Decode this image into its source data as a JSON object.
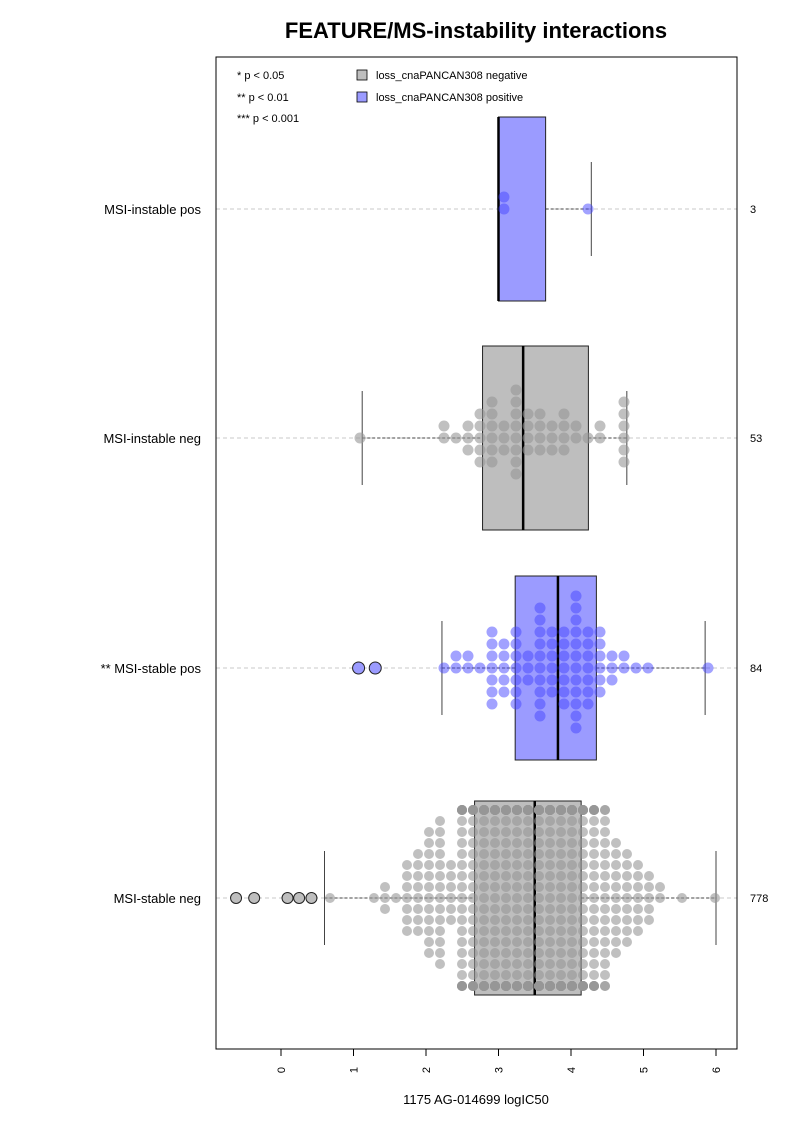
{
  "chart_data": {
    "type": "box",
    "title": "FEATURE/MS-instability interactions",
    "xlabel": "1175 AG-014699 logIC50",
    "ylabel": "",
    "xlim": [
      -0.9,
      6.1
    ],
    "xticks": [
      "0",
      "1",
      "2",
      "3",
      "4",
      "5",
      "6"
    ],
    "grid": "dashed horizontal lines through each group",
    "legend": {
      "position": "top",
      "significance": [
        "* p < 0.05",
        "** p < 0.01",
        "*** p < 0.001"
      ],
      "entries": [
        {
          "label": "loss_cnaPANCAN308 negative",
          "color": "#bebebe"
        },
        {
          "label": "loss_cnaPANCAN308 positive",
          "color": "#9b9bff"
        }
      ]
    },
    "categories": [
      "MSI-instable pos",
      "MSI-instable neg",
      "** MSI-stable pos",
      "MSI-stable neg"
    ],
    "counts": [
      "3",
      "53",
      "84",
      "778"
    ],
    "series": [
      {
        "group": "MSI-instable pos",
        "status": "positive",
        "q1": 3.0,
        "median": 3.0,
        "q3": 3.65,
        "whisker_low": 3.0,
        "whisker_high": 4.28,
        "outliers": [],
        "n": 3
      },
      {
        "group": "MSI-instable neg",
        "status": "negative",
        "q1": 2.78,
        "median": 3.34,
        "q3": 4.24,
        "whisker_low": 1.12,
        "whisker_high": 4.77,
        "outliers": [],
        "n": 53
      },
      {
        "group": "** MSI-stable pos",
        "status": "positive",
        "q1": 3.23,
        "median": 3.82,
        "q3": 4.35,
        "whisker_low": 2.22,
        "whisker_high": 5.85,
        "outliers": [
          1.07,
          1.3
        ],
        "n": 84
      },
      {
        "group": "MSI-stable neg",
        "status": "negative",
        "q1": 2.67,
        "median": 3.5,
        "q3": 4.14,
        "whisker_low": 0.6,
        "whisker_high": 6.0,
        "outliers": [
          -0.62,
          -0.37,
          0.09,
          0.25,
          0.42
        ],
        "n": 778
      }
    ]
  }
}
